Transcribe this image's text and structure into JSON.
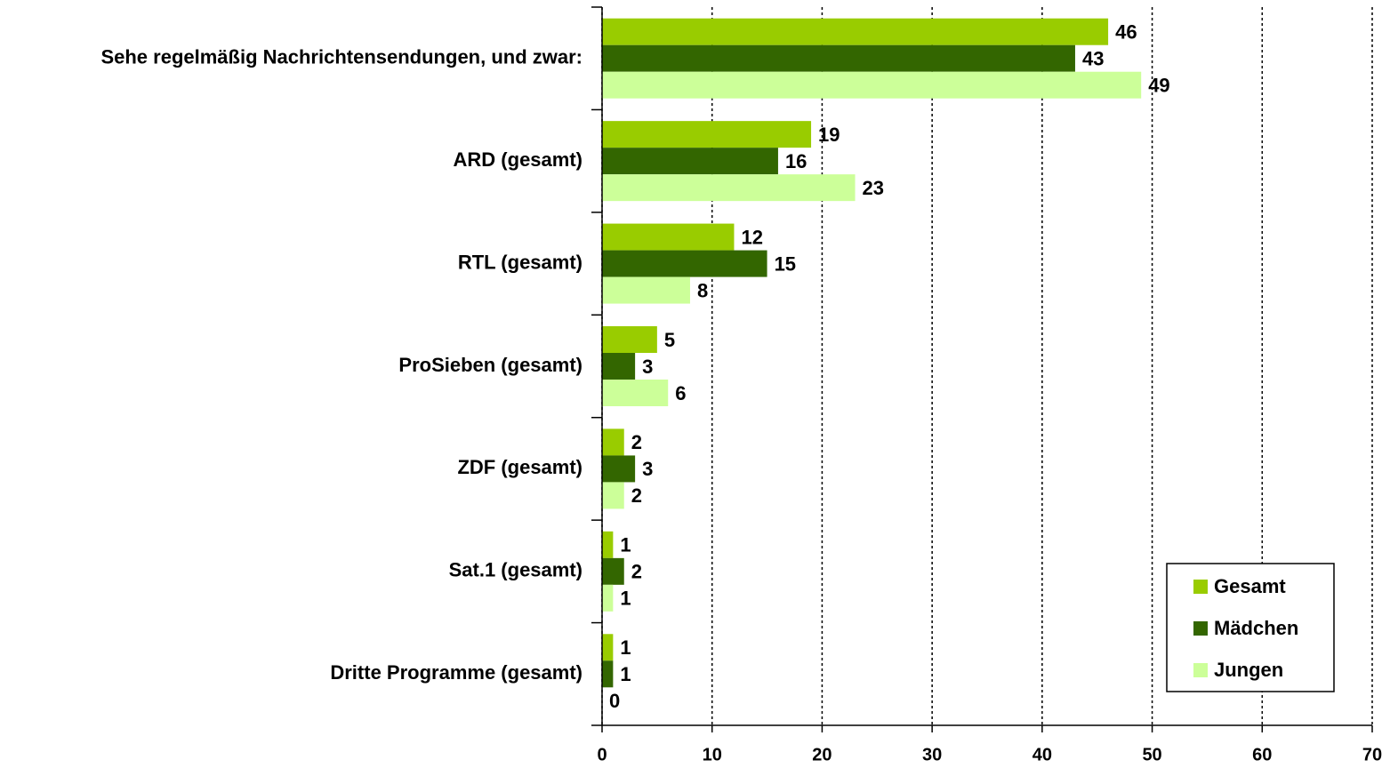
{
  "chart_data": {
    "type": "hbar",
    "categories": [
      "Sehe regelmäßig Nachrichtensendungen, und zwar:",
      "ARD (gesamt)",
      "RTL (gesamt)",
      "ProSieben (gesamt)",
      "ZDF (gesamt)",
      "Sat.1 (gesamt)",
      "Dritte Programme (gesamt)"
    ],
    "series": [
      {
        "name": "Gesamt",
        "color": "#99cc00",
        "values": [
          46,
          19,
          12,
          5,
          2,
          1,
          1
        ]
      },
      {
        "name": "Mädchen",
        "color": "#336600",
        "values": [
          43,
          16,
          15,
          3,
          3,
          2,
          1
        ]
      },
      {
        "name": "Jungen",
        "color": "#ccff99",
        "values": [
          49,
          23,
          8,
          6,
          2,
          1,
          0
        ]
      }
    ],
    "xlim": [
      0,
      70
    ],
    "xticks": [
      0,
      10,
      20,
      30,
      40,
      50,
      60,
      70
    ],
    "grid": true,
    "legend": "lower right"
  }
}
